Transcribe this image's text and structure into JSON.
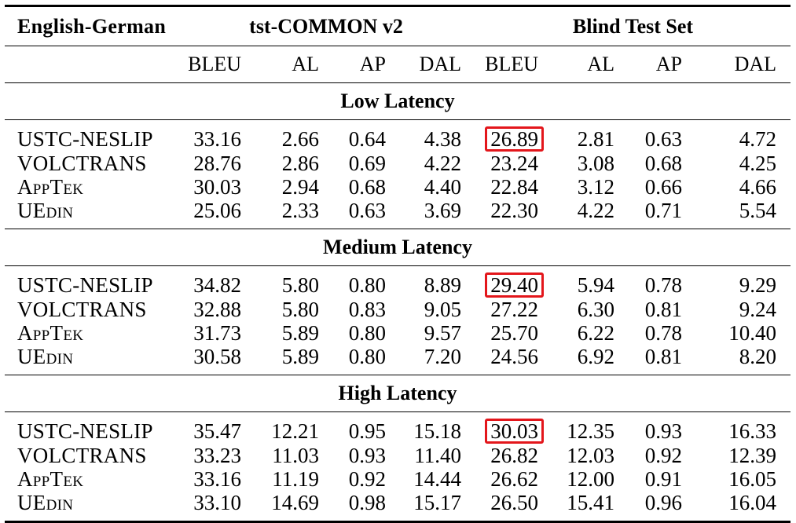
{
  "header": {
    "pair": "English-German",
    "group1": "tst-COMMON v2",
    "group2": "Blind Test Set",
    "columns": [
      "BLEU",
      "AL",
      "AP",
      "DAL",
      "BLEU",
      "AL",
      "AP",
      "DAL"
    ]
  },
  "sections": [
    {
      "title": "Low Latency",
      "rows": [
        {
          "system": "USTC-NESLIP",
          "values": [
            "33.16",
            "2.66",
            "0.64",
            "4.38",
            "26.89",
            "2.81",
            "0.63",
            "4.72"
          ],
          "highlight": 4
        },
        {
          "system": "VOLCTRANS",
          "values": [
            "28.76",
            "2.86",
            "0.69",
            "4.22",
            "23.24",
            "3.08",
            "0.68",
            "4.25"
          ]
        },
        {
          "system": "AppTek",
          "values": [
            "30.03",
            "2.94",
            "0.68",
            "4.40",
            "22.84",
            "3.12",
            "0.66",
            "4.66"
          ]
        },
        {
          "system": "UEdin",
          "values": [
            "25.06",
            "2.33",
            "0.63",
            "3.69",
            "22.30",
            "4.22",
            "0.71",
            "5.54"
          ]
        }
      ]
    },
    {
      "title": "Medium Latency",
      "rows": [
        {
          "system": "USTC-NESLIP",
          "values": [
            "34.82",
            "5.80",
            "0.80",
            "8.89",
            "29.40",
            "5.94",
            "0.78",
            "9.29"
          ],
          "highlight": 4
        },
        {
          "system": "VOLCTRANS",
          "values": [
            "32.88",
            "5.80",
            "0.83",
            "9.05",
            "27.22",
            "6.30",
            "0.81",
            "9.24"
          ]
        },
        {
          "system": "AppTek",
          "values": [
            "31.73",
            "5.89",
            "0.80",
            "9.57",
            "25.70",
            "6.22",
            "0.78",
            "10.40"
          ]
        },
        {
          "system": "UEdin",
          "values": [
            "30.58",
            "5.89",
            "0.80",
            "7.20",
            "24.56",
            "6.92",
            "0.81",
            "8.20"
          ]
        }
      ]
    },
    {
      "title": "High Latency",
      "rows": [
        {
          "system": "USTC-NESLIP",
          "values": [
            "35.47",
            "12.21",
            "0.95",
            "15.18",
            "30.03",
            "12.35",
            "0.93",
            "16.33"
          ],
          "highlight": 4
        },
        {
          "system": "VOLCTRANS",
          "values": [
            "33.23",
            "11.03",
            "0.93",
            "11.40",
            "26.82",
            "12.03",
            "0.92",
            "12.39"
          ]
        },
        {
          "system": "AppTek",
          "values": [
            "33.16",
            "11.19",
            "0.92",
            "14.44",
            "26.62",
            "12.00",
            "0.91",
            "16.05"
          ]
        },
        {
          "system": "UEdin",
          "values": [
            "33.10",
            "14.69",
            "0.98",
            "15.17",
            "26.50",
            "15.41",
            "0.96",
            "16.04"
          ]
        }
      ]
    }
  ],
  "colors": {
    "highlight_border": "#e3161b"
  }
}
